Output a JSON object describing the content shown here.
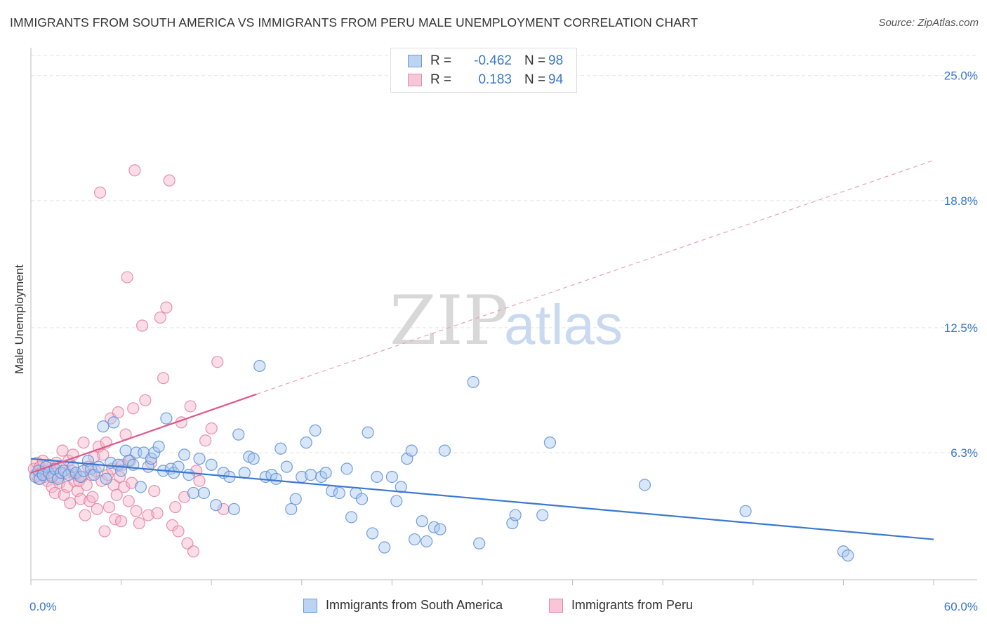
{
  "title": "IMMIGRANTS FROM SOUTH AMERICA VS IMMIGRANTS FROM PERU MALE UNEMPLOYMENT CORRELATION CHART",
  "source": "Source: ZipAtlas.com",
  "watermark": {
    "zip": "ZIP",
    "atlas": "atlas"
  },
  "legend_top": [
    {
      "r_label": "R =",
      "r_value": "-0.462",
      "n_label": "N =",
      "n_value": "98"
    },
    {
      "r_label": "R =",
      "r_value": "0.183",
      "n_label": "N =",
      "n_value": "94"
    }
  ],
  "legend_bottom": [
    {
      "label": "Immigrants from South America"
    },
    {
      "label": "Immigrants from Peru"
    }
  ],
  "colors": {
    "blue_fill": "#a8c8ef",
    "blue_stroke": "#5a8fd6",
    "blue_line": "#3a78d0",
    "pink_fill": "#f5b3c8",
    "pink_stroke": "#e07a9e",
    "pink_line": "#e0588a",
    "axis_label": "#3a78c9",
    "grid": "#e3e3e3"
  },
  "chart_data": {
    "type": "scatter",
    "title": "IMMIGRANTS FROM SOUTH AMERICA VS IMMIGRANTS FROM PERU MALE UNEMPLOYMENT CORRELATION CHART",
    "xlabel": "",
    "ylabel": "Male Unemployment",
    "xlim": [
      0,
      60
    ],
    "ylim": [
      0,
      26
    ],
    "x_tick_labels": [
      "0.0%",
      "60.0%"
    ],
    "y_ticks": [
      6.3,
      12.5,
      18.8,
      25.0
    ],
    "y_tick_labels": [
      "6.3%",
      "12.5%",
      "18.8%",
      "25.0%"
    ],
    "grid": "horizontal dashed",
    "legend": "top-center",
    "series": [
      {
        "name": "Immigrants from South America",
        "color": "#a8c8ef",
        "r": -0.462,
        "n": 98,
        "trend": {
          "x": [
            0,
            60
          ],
          "y": [
            6.0,
            2.0
          ],
          "style": "solid"
        },
        "points": [
          [
            0.3,
            5.1
          ],
          [
            0.5,
            5.4
          ],
          [
            0.6,
            5.0
          ],
          [
            0.8,
            5.2
          ],
          [
            1.0,
            5.6
          ],
          [
            1.2,
            5.3
          ],
          [
            1.4,
            5.1
          ],
          [
            1.6,
            5.5
          ],
          [
            1.8,
            5.0
          ],
          [
            2.0,
            5.3
          ],
          [
            2.2,
            5.4
          ],
          [
            2.5,
            5.2
          ],
          [
            2.8,
            5.6
          ],
          [
            3.0,
            5.3
          ],
          [
            3.3,
            5.1
          ],
          [
            3.5,
            5.4
          ],
          [
            3.8,
            5.9
          ],
          [
            4.0,
            5.5
          ],
          [
            4.2,
            5.2
          ],
          [
            4.5,
            5.6
          ],
          [
            4.8,
            7.6
          ],
          [
            5.0,
            5.0
          ],
          [
            5.3,
            5.8
          ],
          [
            5.5,
            7.8
          ],
          [
            5.8,
            5.7
          ],
          [
            6.0,
            5.4
          ],
          [
            6.3,
            6.4
          ],
          [
            6.5,
            5.9
          ],
          [
            6.8,
            5.7
          ],
          [
            7.0,
            6.3
          ],
          [
            7.3,
            4.6
          ],
          [
            7.5,
            6.3
          ],
          [
            7.8,
            5.6
          ],
          [
            8.0,
            6.0
          ],
          [
            8.2,
            6.3
          ],
          [
            8.5,
            6.6
          ],
          [
            8.8,
            5.4
          ],
          [
            9.0,
            8.0
          ],
          [
            9.3,
            5.5
          ],
          [
            9.5,
            5.3
          ],
          [
            9.8,
            5.6
          ],
          [
            10.2,
            6.2
          ],
          [
            10.5,
            5.2
          ],
          [
            10.8,
            4.3
          ],
          [
            11.2,
            6.0
          ],
          [
            11.5,
            4.3
          ],
          [
            12.0,
            5.7
          ],
          [
            12.3,
            3.7
          ],
          [
            12.8,
            5.3
          ],
          [
            13.2,
            5.1
          ],
          [
            13.5,
            3.5
          ],
          [
            13.8,
            7.2
          ],
          [
            14.2,
            5.3
          ],
          [
            14.5,
            6.1
          ],
          [
            14.8,
            6.0
          ],
          [
            15.2,
            10.6
          ],
          [
            15.6,
            5.1
          ],
          [
            16.0,
            5.2
          ],
          [
            16.3,
            5.0
          ],
          [
            16.6,
            6.5
          ],
          [
            17.0,
            5.6
          ],
          [
            17.3,
            3.5
          ],
          [
            17.6,
            4.0
          ],
          [
            18.0,
            5.1
          ],
          [
            18.3,
            6.8
          ],
          [
            18.6,
            5.2
          ],
          [
            18.9,
            7.4
          ],
          [
            19.3,
            5.1
          ],
          [
            19.6,
            5.3
          ],
          [
            20.0,
            4.4
          ],
          [
            20.5,
            4.3
          ],
          [
            21.0,
            5.5
          ],
          [
            21.3,
            3.1
          ],
          [
            21.6,
            4.3
          ],
          [
            22.0,
            4.0
          ],
          [
            22.4,
            7.3
          ],
          [
            22.7,
            2.3
          ],
          [
            23.0,
            5.1
          ],
          [
            23.5,
            1.6
          ],
          [
            24.0,
            5.1
          ],
          [
            24.3,
            3.9
          ],
          [
            24.6,
            4.6
          ],
          [
            25.0,
            6.0
          ],
          [
            25.3,
            6.4
          ],
          [
            25.5,
            2.0
          ],
          [
            26.0,
            2.9
          ],
          [
            26.3,
            1.9
          ],
          [
            26.8,
            2.6
          ],
          [
            27.2,
            2.5
          ],
          [
            27.5,
            6.4
          ],
          [
            29.4,
            9.8
          ],
          [
            29.8,
            1.8
          ],
          [
            32.0,
            2.8
          ],
          [
            32.2,
            3.2
          ],
          [
            34.0,
            3.2
          ],
          [
            34.5,
            6.8
          ],
          [
            40.8,
            4.7
          ],
          [
            47.5,
            3.4
          ],
          [
            54.0,
            1.4
          ],
          [
            54.3,
            1.2
          ]
        ]
      },
      {
        "name": "Immigrants from Peru",
        "color": "#f5b3c8",
        "r": 0.183,
        "n": 94,
        "trend": {
          "x": [
            0,
            15
          ],
          "y": [
            5.3,
            9.2
          ],
          "style": "solid",
          "extended": {
            "x": [
              15,
              60
            ],
            "y": [
              9.2,
              20.8
            ],
            "style": "dashed"
          }
        },
        "points": [
          [
            0.2,
            5.5
          ],
          [
            0.3,
            5.2
          ],
          [
            0.4,
            5.8
          ],
          [
            0.5,
            5.0
          ],
          [
            0.6,
            5.6
          ],
          [
            0.7,
            5.3
          ],
          [
            0.8,
            5.9
          ],
          [
            0.9,
            5.1
          ],
          [
            1.0,
            5.4
          ],
          [
            1.1,
            4.9
          ],
          [
            1.2,
            5.7
          ],
          [
            1.3,
            5.2
          ],
          [
            1.4,
            4.6
          ],
          [
            1.5,
            5.5
          ],
          [
            1.6,
            4.3
          ],
          [
            1.7,
            5.8
          ],
          [
            1.8,
            5.1
          ],
          [
            1.9,
            4.8
          ],
          [
            2.0,
            5.6
          ],
          [
            2.1,
            6.4
          ],
          [
            2.2,
            4.2
          ],
          [
            2.3,
            5.3
          ],
          [
            2.4,
            4.6
          ],
          [
            2.5,
            5.9
          ],
          [
            2.6,
            3.8
          ],
          [
            2.7,
            5.4
          ],
          [
            2.8,
            6.2
          ],
          [
            2.9,
            4.9
          ],
          [
            3.0,
            5.2
          ],
          [
            3.1,
            4.4
          ],
          [
            3.2,
            4.9
          ],
          [
            3.3,
            4.0
          ],
          [
            3.4,
            5.1
          ],
          [
            3.5,
            6.8
          ],
          [
            3.6,
            3.2
          ],
          [
            3.7,
            4.7
          ],
          [
            3.8,
            5.6
          ],
          [
            3.9,
            3.9
          ],
          [
            4.0,
            5.2
          ],
          [
            4.1,
            4.1
          ],
          [
            4.2,
            6.1
          ],
          [
            4.3,
            5.4
          ],
          [
            4.4,
            3.5
          ],
          [
            4.5,
            6.6
          ],
          [
            4.6,
            19.2
          ],
          [
            4.7,
            4.9
          ],
          [
            4.8,
            6.2
          ],
          [
            4.9,
            2.4
          ],
          [
            5.0,
            6.8
          ],
          [
            5.1,
            5.2
          ],
          [
            5.2,
            3.6
          ],
          [
            5.3,
            8.0
          ],
          [
            5.4,
            5.5
          ],
          [
            5.5,
            4.7
          ],
          [
            5.6,
            3.0
          ],
          [
            5.7,
            4.2
          ],
          [
            5.8,
            8.3
          ],
          [
            5.9,
            5.1
          ],
          [
            6.0,
            2.9
          ],
          [
            6.1,
            5.7
          ],
          [
            6.2,
            4.6
          ],
          [
            6.3,
            7.2
          ],
          [
            6.4,
            15.0
          ],
          [
            6.5,
            3.9
          ],
          [
            6.6,
            5.9
          ],
          [
            6.7,
            4.8
          ],
          [
            6.8,
            8.5
          ],
          [
            6.9,
            20.3
          ],
          [
            7.0,
            3.4
          ],
          [
            7.2,
            2.8
          ],
          [
            7.4,
            12.6
          ],
          [
            7.6,
            8.9
          ],
          [
            7.8,
            3.2
          ],
          [
            8.0,
            5.8
          ],
          [
            8.2,
            4.4
          ],
          [
            8.4,
            3.3
          ],
          [
            8.6,
            13.0
          ],
          [
            8.8,
            10.0
          ],
          [
            9.0,
            13.5
          ],
          [
            9.2,
            19.8
          ],
          [
            9.4,
            2.7
          ],
          [
            9.6,
            3.6
          ],
          [
            9.8,
            2.4
          ],
          [
            10.0,
            7.8
          ],
          [
            10.2,
            4.1
          ],
          [
            10.4,
            1.8
          ],
          [
            10.6,
            8.6
          ],
          [
            10.8,
            1.4
          ],
          [
            11.0,
            5.4
          ],
          [
            11.2,
            4.9
          ],
          [
            11.6,
            6.9
          ],
          [
            12.0,
            7.5
          ],
          [
            12.4,
            10.8
          ],
          [
            12.8,
            3.5
          ]
        ]
      }
    ]
  }
}
